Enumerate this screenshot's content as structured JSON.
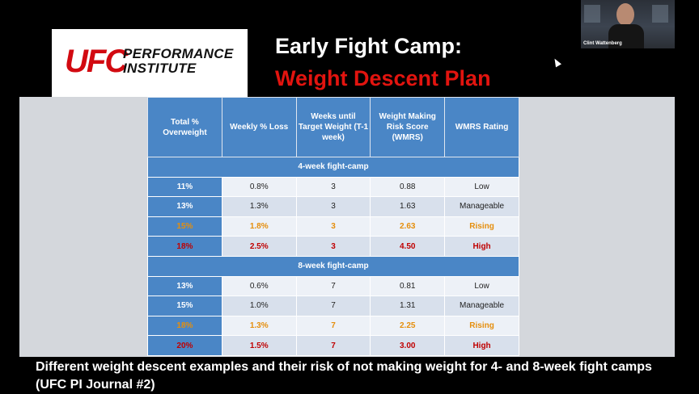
{
  "logo": {
    "ufc": "UFC",
    "line1": "PERFORMANCE",
    "line2": "INSTITUTE"
  },
  "slide": {
    "title_line1": "Early Fight Camp:",
    "title_line2": "Weight Descent Plan"
  },
  "webcam": {
    "name": "Clint Wattenberg"
  },
  "table": {
    "headers": [
      "Total % Overweight",
      "Weekly % Loss",
      "Weeks until Target Weight (T-1 week)",
      "Weight Making Risk Score (WMRS)",
      "WMRS Rating"
    ],
    "section1": "4-week fight-camp",
    "section2": "8-week fight-camp",
    "rows4": [
      [
        "11%",
        "0.8%",
        "3",
        "0.88",
        "Low"
      ],
      [
        "13%",
        "1.3%",
        "3",
        "1.63",
        "Manageable"
      ],
      [
        "15%",
        "1.8%",
        "3",
        "2.63",
        "Rising"
      ],
      [
        "18%",
        "2.5%",
        "3",
        "4.50",
        "High"
      ]
    ],
    "rows8": [
      [
        "13%",
        "0.6%",
        "7",
        "0.81",
        "Low"
      ],
      [
        "15%",
        "1.0%",
        "7",
        "1.31",
        "Manageable"
      ],
      [
        "18%",
        "1.3%",
        "7",
        "2.25",
        "Rising"
      ],
      [
        "20%",
        "1.5%",
        "7",
        "3.00",
        "High"
      ]
    ]
  },
  "caption": "Different weight descent examples and their risk of not making weight for 4- and 8-week fight camps (UFC PI Journal #2)",
  "colors": {
    "ufc_red": "#d20a11",
    "header_blue": "#4a86c6",
    "rising": "#e58e0c",
    "high": "#c00000"
  }
}
